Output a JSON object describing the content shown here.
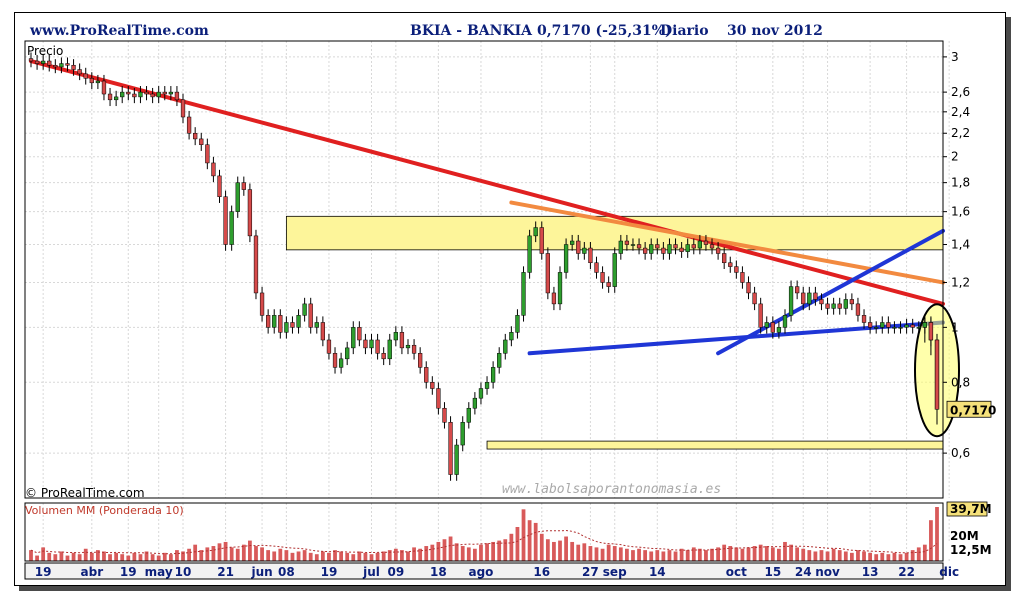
{
  "header": {
    "site": "www.ProRealTime.com",
    "instrument": "BKIA - BANKIA",
    "price_change": "0,7170 (-25,31%)",
    "period": "Diario",
    "date": "30 nov 2012"
  },
  "panel_labels": {
    "price": "Precio",
    "copyright": "© ProRealTime.com",
    "watermark": "www.labolsaporantonomasia.es",
    "volume": "Volumen MM (Ponderada 10)"
  },
  "colors": {
    "background": "#ffffff",
    "header_text": "#0b1f7a",
    "up_candle": "#2e9e2e",
    "down_candle": "#d64a4a",
    "red_trend": "#e02020",
    "orange_trend": "#f28a40",
    "blue_trend": "#1f36d6",
    "zone_fill": "#fdf59a",
    "label_box": "#f5e17a",
    "volume_label": "#c0392b",
    "volume_bar": "#d85a5a"
  },
  "chart_data": {
    "type": "candlestick",
    "title": "BKIA - BANKIA",
    "y_axis": {
      "scale": "log",
      "range": [
        0.5,
        3.2
      ],
      "ticks": [
        "3",
        "2,6",
        "2,4",
        "2,2",
        "2",
        "1,8",
        "1,6",
        "1,4",
        "1,2",
        "1",
        "0,8",
        "0,6"
      ],
      "tick_values": [
        3,
        2.6,
        2.4,
        2.2,
        2,
        1.8,
        1.6,
        1.4,
        1.2,
        1,
        0.8,
        0.6
      ],
      "last_value_label": "0,7170",
      "last_value": 0.717
    },
    "x_axis": {
      "ticks": [
        {
          "label": "19",
          "index": 2
        },
        {
          "label": "abr",
          "index": 10
        },
        {
          "label": "19",
          "index": 16
        },
        {
          "label": "may",
          "index": 21
        },
        {
          "label": "10",
          "index": 25
        },
        {
          "label": "21",
          "index": 32
        },
        {
          "label": "jun",
          "index": 38
        },
        {
          "label": "08",
          "index": 42
        },
        {
          "label": "19",
          "index": 49
        },
        {
          "label": "jul",
          "index": 56
        },
        {
          "label": "09",
          "index": 60
        },
        {
          "label": "18",
          "index": 67
        },
        {
          "label": "ago",
          "index": 74
        },
        {
          "label": "16",
          "index": 84
        },
        {
          "label": "27",
          "index": 92
        },
        {
          "label": "sep",
          "index": 96
        },
        {
          "label": "14",
          "index": 103
        },
        {
          "label": "oct",
          "index": 116
        },
        {
          "label": "15",
          "index": 122
        },
        {
          "label": "24",
          "index": 127
        },
        {
          "label": "nov",
          "index": 131
        },
        {
          "label": "13",
          "index": 138
        },
        {
          "label": "22",
          "index": 144
        },
        {
          "label": "dic",
          "index": 151
        }
      ]
    },
    "candles_close": [
      2.95,
      2.92,
      2.95,
      2.9,
      2.88,
      2.92,
      2.9,
      2.85,
      2.8,
      2.75,
      2.7,
      2.72,
      2.58,
      2.52,
      2.55,
      2.6,
      2.58,
      2.55,
      2.6,
      2.58,
      2.55,
      2.6,
      2.58,
      2.6,
      2.52,
      2.35,
      2.2,
      2.15,
      2.1,
      1.95,
      1.85,
      1.7,
      1.4,
      1.6,
      1.8,
      1.75,
      1.45,
      1.15,
      1.05,
      1.0,
      1.05,
      0.98,
      1.02,
      1.0,
      1.05,
      1.1,
      1.0,
      1.02,
      0.95,
      0.9,
      0.85,
      0.88,
      0.92,
      1.0,
      0.95,
      0.92,
      0.95,
      0.9,
      0.88,
      0.95,
      0.98,
      0.92,
      0.93,
      0.9,
      0.85,
      0.8,
      0.78,
      0.72,
      0.68,
      0.55,
      0.62,
      0.68,
      0.72,
      0.75,
      0.78,
      0.8,
      0.85,
      0.9,
      0.95,
      0.98,
      1.05,
      1.25,
      1.45,
      1.5,
      1.35,
      1.15,
      1.1,
      1.25,
      1.4,
      1.42,
      1.35,
      1.38,
      1.3,
      1.25,
      1.2,
      1.18,
      1.35,
      1.42,
      1.4,
      1.4,
      1.38,
      1.35,
      1.4,
      1.38,
      1.35,
      1.4,
      1.38,
      1.36,
      1.4,
      1.38,
      1.42,
      1.4,
      1.38,
      1.35,
      1.3,
      1.28,
      1.25,
      1.2,
      1.15,
      1.1,
      1.0,
      1.02,
      0.98,
      1.0,
      1.05,
      1.18,
      1.15,
      1.1,
      1.15,
      1.12,
      1.1,
      1.08,
      1.1,
      1.08,
      1.12,
      1.1,
      1.05,
      1.02,
      1.0,
      1.0,
      1.02,
      1.0,
      1.0,
      1.0,
      1.01,
      1.0,
      1.0,
      1.02,
      0.95,
      0.717
    ],
    "volume": {
      "unit": "M",
      "labels": [
        "39,7M",
        "20M",
        "12,5M"
      ],
      "max_value": 39.7,
      "last_value": 39.7,
      "average_value": 12.5,
      "values": [
        8,
        4,
        10,
        6,
        5,
        7,
        4,
        6,
        5,
        9,
        6,
        8,
        7,
        5,
        6,
        5,
        4,
        6,
        5,
        7,
        5,
        4,
        6,
        5,
        8,
        7,
        9,
        12,
        8,
        10,
        11,
        13,
        14,
        10,
        9,
        12,
        15,
        11,
        10,
        8,
        7,
        9,
        8,
        6,
        7,
        8,
        6,
        5,
        7,
        6,
        8,
        7,
        6,
        5,
        7,
        6,
        5,
        6,
        7,
        8,
        9,
        8,
        7,
        10,
        9,
        11,
        12,
        14,
        16,
        18,
        13,
        11,
        10,
        9,
        12,
        13,
        14,
        15,
        16,
        20,
        25,
        38,
        30,
        28,
        20,
        16,
        14,
        15,
        18,
        14,
        12,
        13,
        11,
        10,
        9,
        12,
        11,
        10,
        9,
        8,
        9,
        8,
        7,
        8,
        7,
        8,
        7,
        9,
        8,
        10,
        9,
        8,
        9,
        10,
        12,
        11,
        10,
        9,
        10,
        11,
        12,
        11,
        10,
        9,
        14,
        12,
        10,
        9,
        8,
        7,
        8,
        7,
        9,
        8,
        7,
        6,
        8,
        7,
        6,
        5,
        6,
        5,
        6,
        5,
        6,
        8,
        10,
        12,
        30,
        39.7
      ]
    },
    "annotations": [
      {
        "type": "trendline",
        "color": "red",
        "from": {
          "index": 0,
          "value": 2.95
        },
        "to": {
          "index": 156,
          "value": 1.1
        }
      },
      {
        "type": "trendline",
        "color": "orange",
        "from": {
          "index": 79,
          "value": 1.66
        },
        "to": {
          "index": 156,
          "value": 1.2
        }
      },
      {
        "type": "trendline",
        "color": "blue",
        "from": {
          "index": 82,
          "value": 0.9
        },
        "to": {
          "index": 156,
          "value": 1.02
        }
      },
      {
        "type": "trendline",
        "color": "blue",
        "from": {
          "index": 113,
          "value": 0.9
        },
        "to": {
          "index": 156,
          "value": 1.48
        }
      },
      {
        "type": "zone",
        "from": {
          "index": 42,
          "value": 1.37
        },
        "to": {
          "index": 156,
          "value": 1.57
        }
      },
      {
        "type": "zone",
        "from": {
          "index": 75,
          "value": 0.61
        },
        "to": {
          "index": 156,
          "value": 0.63
        }
      },
      {
        "type": "ellipse",
        "center": {
          "index": 149,
          "value": 0.84
        }
      }
    ]
  }
}
